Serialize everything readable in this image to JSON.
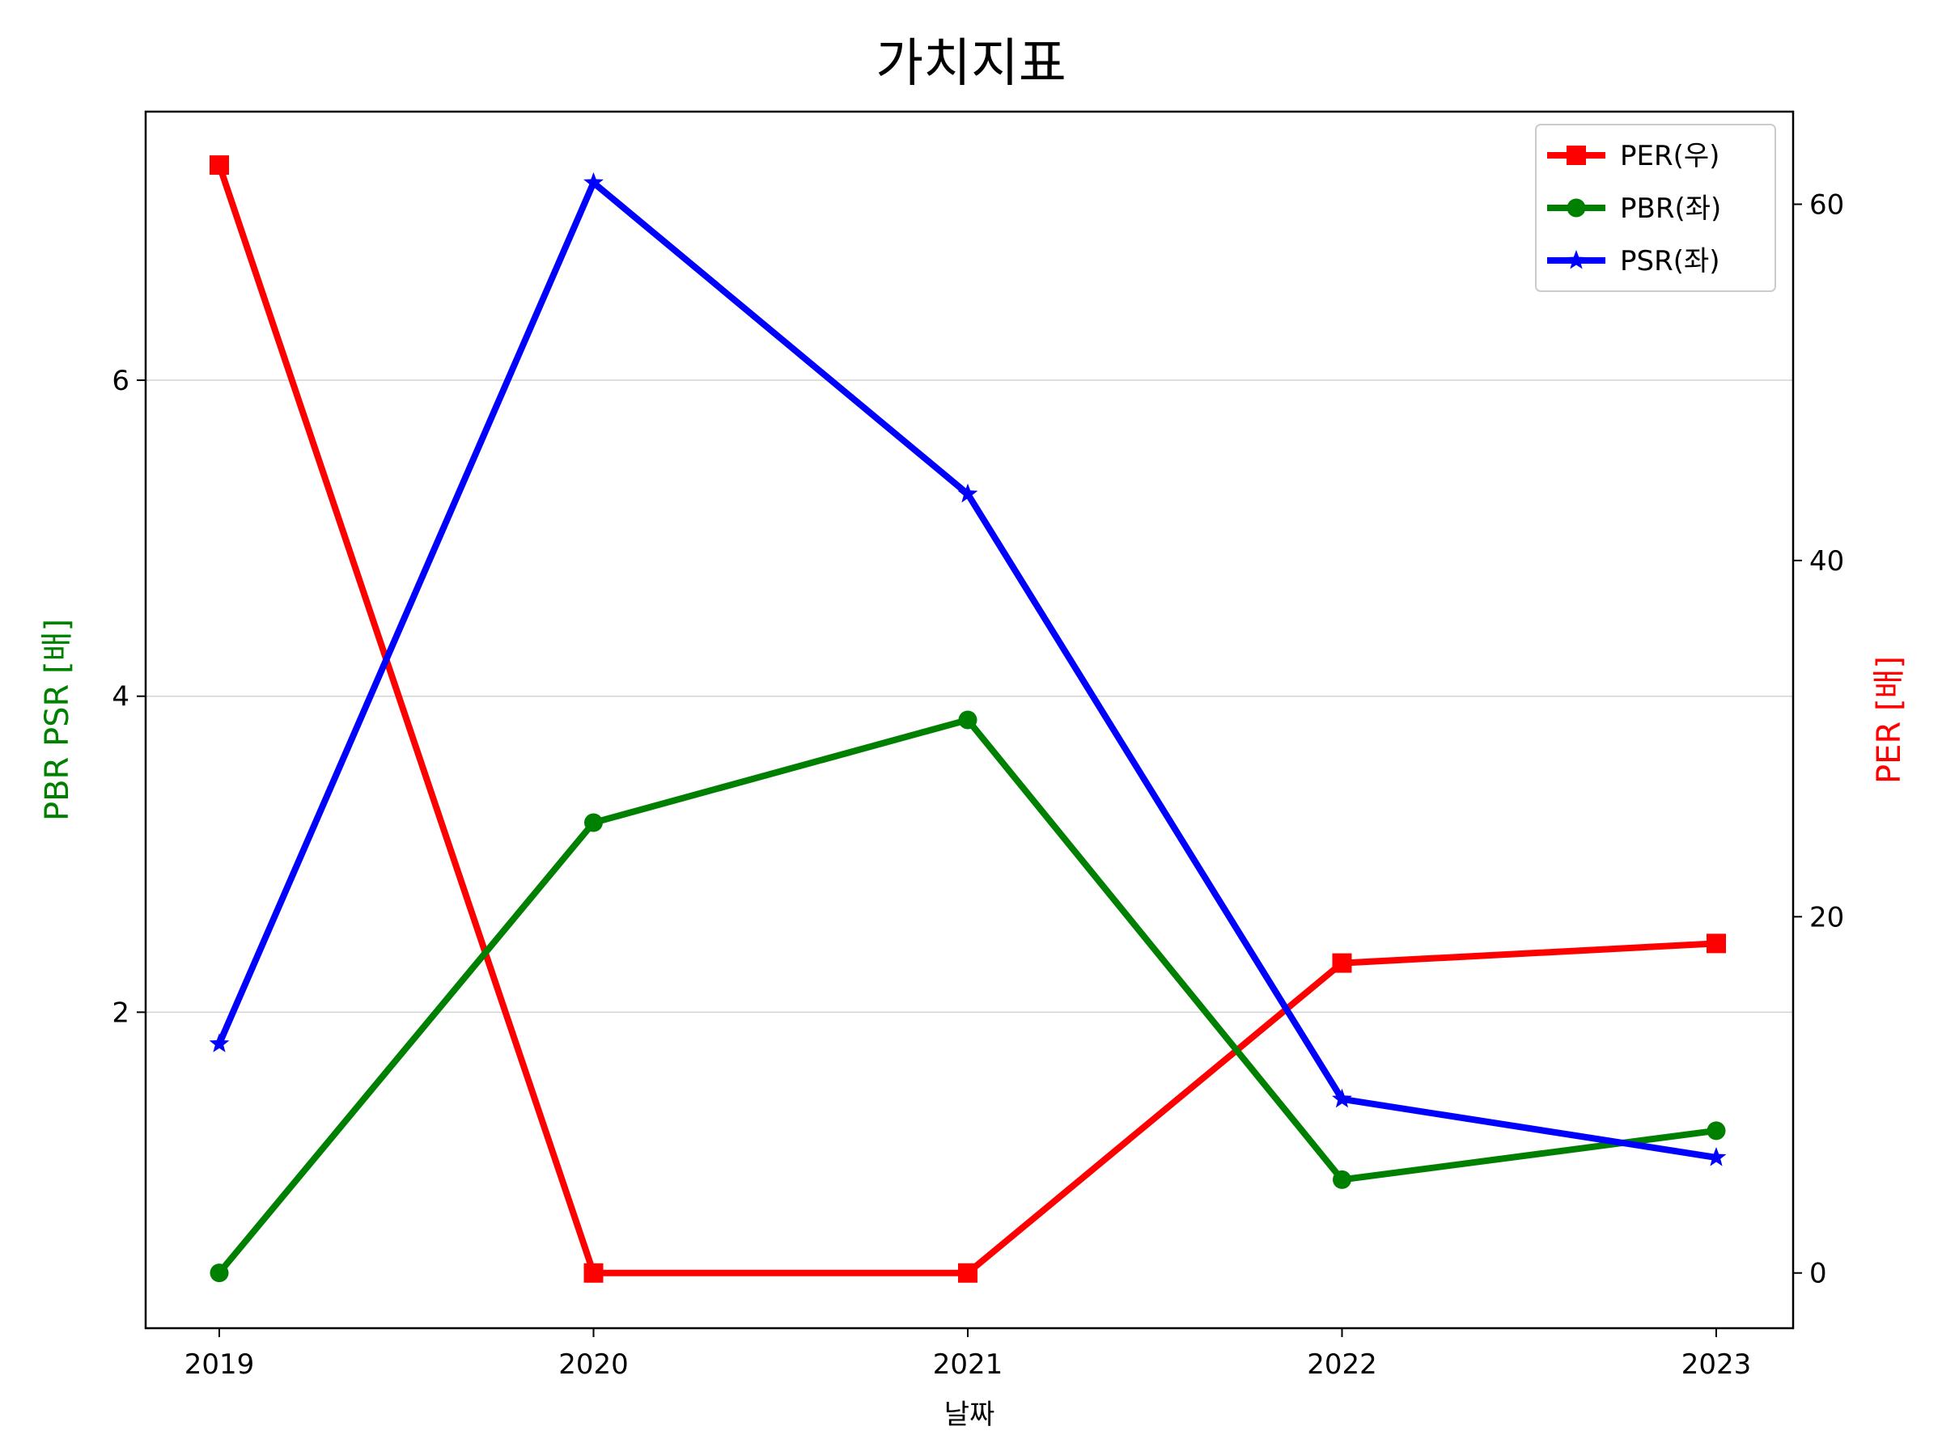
{
  "chart_data": {
    "type": "line",
    "title": "가치지표",
    "xlabel": "날짜",
    "ylabel_left": "PBR PSR [배]",
    "ylabel_right": "PER [배]",
    "categories": [
      "2019",
      "2020",
      "2021",
      "2022",
      "2023"
    ],
    "ylim_left": [
      0.0,
      7.7
    ],
    "ylim_right": [
      -3.1,
      65.2
    ],
    "yticks_left": [
      2,
      4,
      6
    ],
    "yticks_right": [
      0,
      20,
      40,
      60
    ],
    "grid": "horizontal (left axis)",
    "legend_position": "top-right",
    "series": [
      {
        "name": "PER(우)",
        "axis": "right",
        "color": "#ff0000",
        "marker": "square",
        "values": [
          62.2,
          0.0,
          0.0,
          17.4,
          18.5
        ]
      },
      {
        "name": "PBR(좌)",
        "axis": "left",
        "color": "#008000",
        "marker": "circle",
        "values": [
          0.35,
          3.2,
          3.85,
          0.94,
          1.25
        ]
      },
      {
        "name": "PSR(좌)",
        "axis": "left",
        "color": "#0000ff",
        "marker": "star",
        "values": [
          1.8,
          7.25,
          5.28,
          1.45,
          1.08
        ]
      }
    ]
  }
}
